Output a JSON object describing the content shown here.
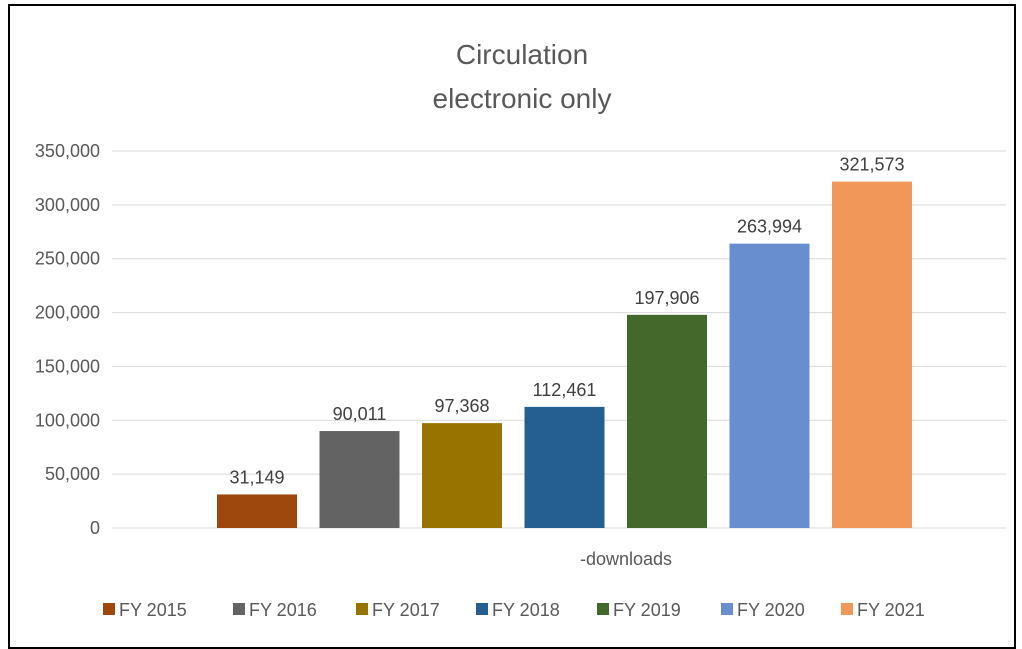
{
  "chart_data": {
    "type": "bar",
    "title": "Circulation",
    "subtitle": "electronic only",
    "categories": [
      "-downloads"
    ],
    "series": [
      {
        "name": "FY 2015",
        "values": [
          31149
        ],
        "color": "#9e480e"
      },
      {
        "name": "FY 2016",
        "values": [
          90011
        ],
        "color": "#636363"
      },
      {
        "name": "FY 2017",
        "values": [
          97368
        ],
        "color": "#997300"
      },
      {
        "name": "FY 2018",
        "values": [
          112461
        ],
        "color": "#255e91"
      },
      {
        "name": "FY 2019",
        "values": [
          197906
        ],
        "color": "#43682b"
      },
      {
        "name": "FY 2020",
        "values": [
          263994
        ],
        "color": "#698ed0"
      },
      {
        "name": "FY 2021",
        "values": [
          321573
        ],
        "color": "#f1975a"
      }
    ],
    "data_labels": [
      "31,149",
      "90,011",
      "97,368",
      "112,461",
      "197,906",
      "263,994",
      "321,573"
    ],
    "yticks": [
      "0",
      "50,000",
      "100,000",
      "150,000",
      "200,000",
      "250,000",
      "300,000",
      "350,000"
    ],
    "ylim": [
      0,
      350000
    ],
    "grid": true,
    "legend_position": "bottom",
    "xlabel": "",
    "ylabel": ""
  }
}
